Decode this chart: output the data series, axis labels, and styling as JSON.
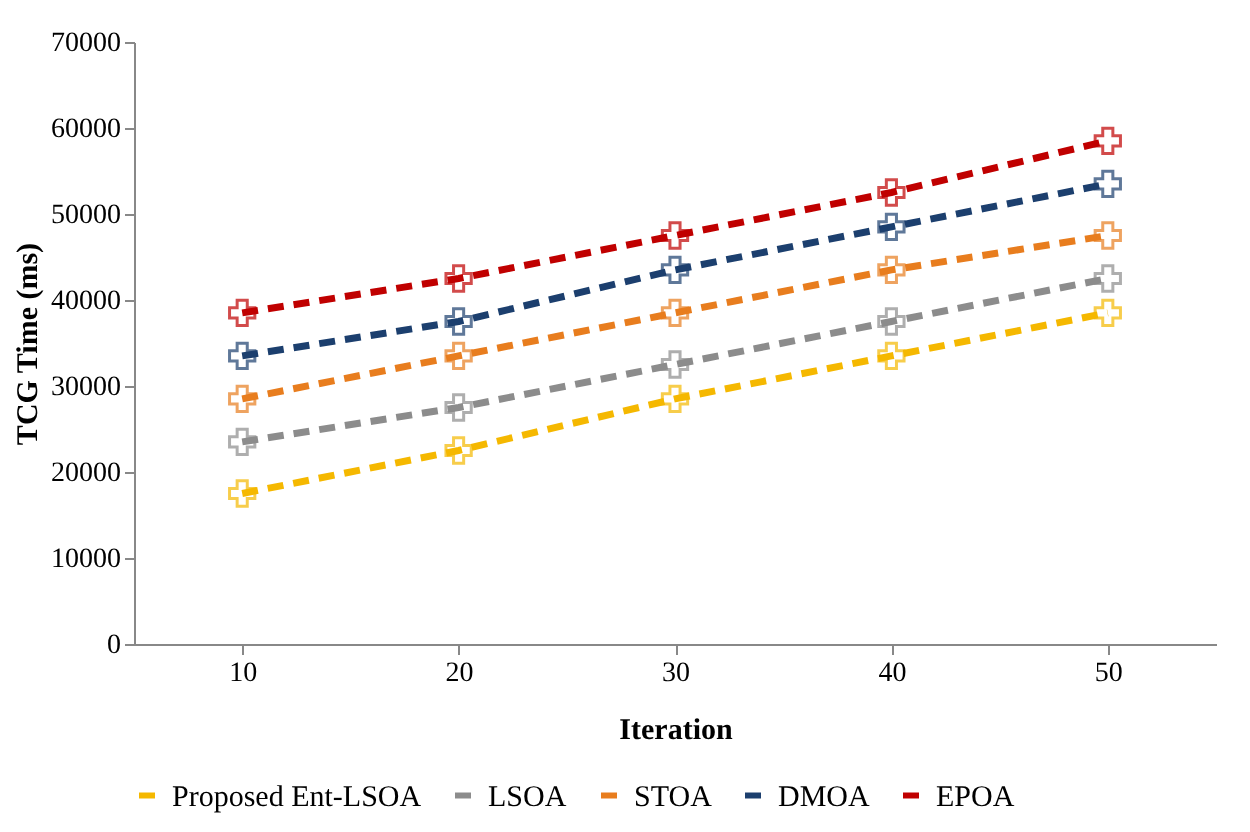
{
  "chart_data": {
    "type": "line",
    "xlabel": "Iteration",
    "ylabel": "TCG Time  (ms)",
    "categories": [
      "10",
      "20",
      "30",
      "40",
      "50"
    ],
    "series": [
      {
        "name": "Proposed Ent-LSOA",
        "color": "#f5b800",
        "values": [
          17500,
          22500,
          28500,
          33500,
          38500
        ]
      },
      {
        "name": "LSOA",
        "color": "#8c8c8c",
        "values": [
          23500,
          27500,
          32500,
          37500,
          42500
        ]
      },
      {
        "name": "STOA",
        "color": "#e87d1e",
        "values": [
          28500,
          33500,
          38500,
          43500,
          47500
        ]
      },
      {
        "name": "DMOA",
        "color": "#1c3f6e",
        "values": [
          33500,
          37500,
          43500,
          48500,
          53500
        ]
      },
      {
        "name": "EPOA",
        "color": "#c00000",
        "values": [
          38500,
          42500,
          47500,
          52500,
          58500
        ]
      }
    ],
    "ylim": [
      0,
      70000
    ],
    "yticks": [
      0,
      10000,
      20000,
      30000,
      40000,
      50000,
      60000,
      70000
    ],
    "grid": false,
    "legend": "bottom",
    "marker": "cross",
    "line_style": "dashed"
  }
}
